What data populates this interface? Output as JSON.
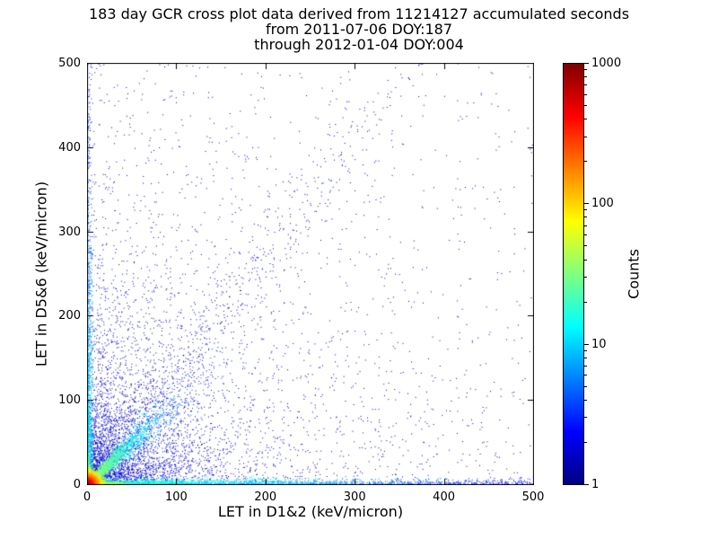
{
  "figure": {
    "background": "#ffffff",
    "frame_color": "#000000"
  },
  "chart_data": {
    "type": "scatter",
    "title": "183 day GCR cross plot data derived from 11214127 accumulated seconds",
    "subtitle_lines": [
      "from 2011-07-06 DOY:187",
      "through 2012-01-04 DOY:004"
    ],
    "xlabel": "LET in D1&2 (keV/micron)",
    "ylabel": "LET in D5&6 (keV/micron)",
    "xlim": [
      0,
      500
    ],
    "ylim": [
      0,
      500
    ],
    "x_ticks": [
      0,
      100,
      200,
      300,
      400,
      500
    ],
    "y_ticks": [
      0,
      100,
      200,
      300,
      400,
      500
    ],
    "grid": false,
    "legend": "none",
    "colorbar": {
      "label": "Counts",
      "scale": "log",
      "min": 1,
      "max": 1000,
      "ticks": [
        1,
        10,
        100,
        1000
      ]
    },
    "colormap": {
      "name": "jet",
      "stops": [
        {
          "t": 0.0,
          "color": "#000080"
        },
        {
          "t": 0.125,
          "color": "#0000ff"
        },
        {
          "t": 0.375,
          "color": "#00ffff"
        },
        {
          "t": 0.625,
          "color": "#ffff00"
        },
        {
          "t": 0.875,
          "color": "#ff0000"
        },
        {
          "t": 1.0,
          "color": "#800000"
        }
      ]
    },
    "clusters": [
      {
        "name": "sparse-wide-cloud",
        "type": "uniform",
        "n": 450,
        "t0": 0.04,
        "jitter": 0.03,
        "size": 1
      },
      {
        "name": "diffuse-cloud",
        "type": "exp2",
        "n": 2400,
        "sx": 150,
        "sy": 150,
        "t0": 0.05,
        "jitter": 0.04,
        "size": 1
      },
      {
        "name": "far-diagonal-band",
        "type": "diag",
        "n": 650,
        "slope": 1.35,
        "scale": 130,
        "mix": 0.35,
        "dmax": 360,
        "spread": 14,
        "spread_frac": 0.04,
        "t0": 0.06,
        "t1": 0.05,
        "tspan": 400,
        "jitter": 0.03,
        "size": 1
      },
      {
        "name": "low-corner-fan",
        "type": "exp2",
        "n": 3000,
        "sx": 48,
        "sy": 48,
        "t0": 0.08,
        "jitter": 0.06,
        "size": 1
      },
      {
        "name": "x-axis-band",
        "type": "band-x",
        "n": 2400,
        "scale": 140,
        "mix": 0.25,
        "spread": 3.2,
        "t0": 0.45,
        "t1": 0.12,
        "tspan": 500,
        "jitter": 0.08,
        "size": 1
      },
      {
        "name": "y-axis-band",
        "type": "band-y",
        "n": 1200,
        "scale": 110,
        "mix": 0.2,
        "spread": 2.6,
        "t0": 0.4,
        "t1": 0.1,
        "tspan": 500,
        "jitter": 0.08,
        "size": 1
      },
      {
        "name": "near-diagonal-streak",
        "type": "diag",
        "n": 2400,
        "slope": 1.0,
        "scale": 32,
        "mix": 0.0,
        "dmax": 150,
        "spread": 1.2,
        "spread_frac": 0.12,
        "t0": 0.55,
        "t1": 0.18,
        "tspan": 110,
        "jitter": 0.08,
        "size": 1
      },
      {
        "name": "x-axis-hot-streak",
        "type": "band-x",
        "n": 1100,
        "scale": 13,
        "mix": 0.0,
        "spread": 1.2,
        "t0": 0.8,
        "t1": 0.35,
        "tspan": 60,
        "jitter": 0.07,
        "size": 1
      },
      {
        "name": "y-axis-hot-streak",
        "type": "band-y",
        "n": 700,
        "scale": 11,
        "mix": 0.0,
        "spread": 1.1,
        "t0": 0.75,
        "t1": 0.3,
        "tspan": 50,
        "jitter": 0.07,
        "size": 1
      },
      {
        "name": "hot-core",
        "type": "radial",
        "n": 4200,
        "sx": 4,
        "sy": 4,
        "rmax": 28,
        "t0": 1.0,
        "t1": 0.35,
        "jitter": 0.06,
        "size": 1
      }
    ]
  }
}
